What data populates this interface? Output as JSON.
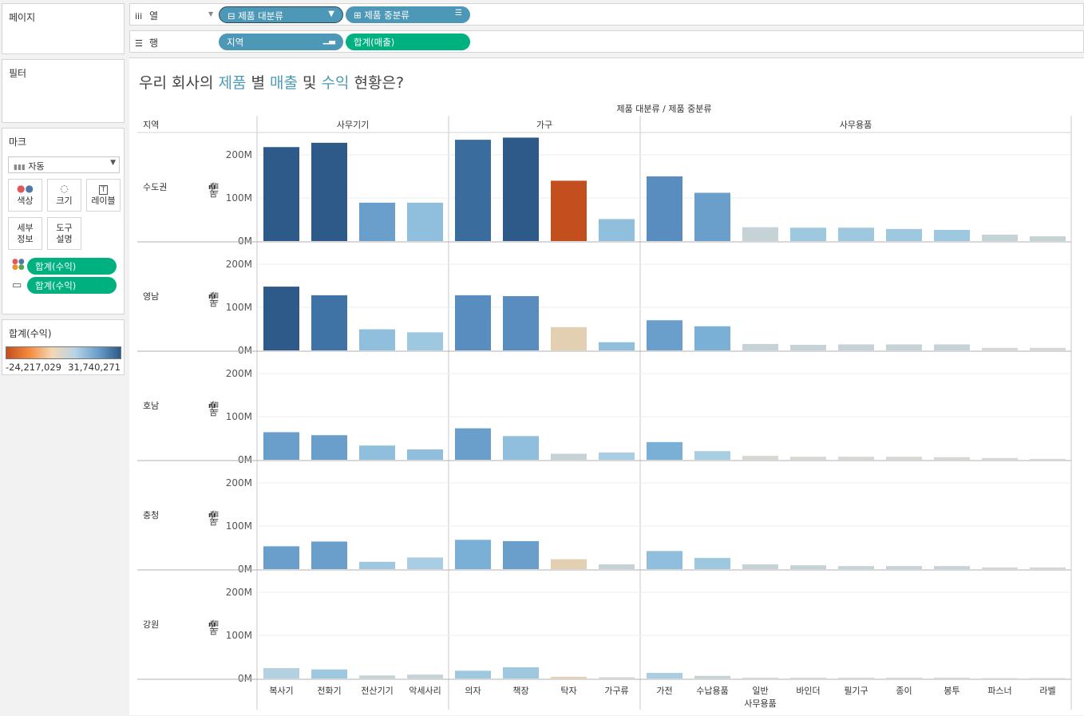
{
  "left_panels": {
    "pages_title": "페이지",
    "filters_title": "필터",
    "marks_title": "마크",
    "mark_type": "자동",
    "mark_buttons": {
      "color": "색상",
      "size": "크기",
      "label": "레이블",
      "detail": "세부\n정보",
      "tooltip": "도구\n설명"
    },
    "mark_pills": [
      "합계(수익)",
      "합계(수익)"
    ],
    "legend_title": "합계(수익)",
    "legend_min": "-24,217,029",
    "legend_max": "31,740,271",
    "legend_colors": [
      "#c34f1e",
      "#f58a3d",
      "#f5d7b4",
      "#b7d4e6",
      "#6a9fcc",
      "#2d5a88"
    ]
  },
  "shelves": {
    "columns_label": "열",
    "rows_label": "행",
    "column_pills": [
      "제품 대분류",
      "제품 중분류"
    ],
    "row_pills": [
      "지역",
      "합계(매출)"
    ]
  },
  "title": {
    "p1": "우리 회사의 ",
    "w1": "제품",
    "p2": " 별 ",
    "w2": "매출",
    "p3": " 및 ",
    "w3": "수익",
    "p4": " 현황은?"
  },
  "chart_data": {
    "type": "bar",
    "top_header": "제품 대분류 / 제품 중분류",
    "row_header": "지역",
    "category_groups": [
      {
        "name": "사무기기",
        "items": [
          "복사기",
          "전화기",
          "전산기기",
          "악세사리"
        ]
      },
      {
        "name": "가구",
        "items": [
          "의자",
          "책장",
          "탁자",
          "가구류"
        ]
      },
      {
        "name": "사무용품",
        "items": [
          "가전",
          "수납용품",
          "일반\n사무용품",
          "바인더",
          "필기구",
          "종이",
          "봉투",
          "파스너",
          "라벨"
        ]
      }
    ],
    "ylabel": "매출",
    "ylim": [
      0,
      250000000
    ],
    "yticks": [
      0,
      100000000,
      200000000
    ],
    "ytick_labels": [
      "0M",
      "100M",
      "200M"
    ],
    "series": [
      {
        "name": "수도권",
        "values": [
          218,
          228,
          89,
          89,
          235,
          240,
          140,
          51,
          150,
          112,
          32,
          31,
          31,
          28,
          26,
          15,
          11
        ],
        "colors": [
          "#2d5a88",
          "#2d5a88",
          "#6a9fcc",
          "#8fbfdc",
          "#3b6c9e",
          "#2d5a88",
          "#c34f1e",
          "#8fbfdc",
          "#5a8dbf",
          "#6a9fcc",
          "#c5d3d6",
          "#9ec8e0",
          "#9ec8e0",
          "#9ec8e0",
          "#9ec8e0",
          "#c5d3d6",
          "#c5d3d6"
        ]
      },
      {
        "name": "영남",
        "values": [
          148,
          128,
          49,
          42,
          128,
          126,
          54,
          19,
          70,
          56,
          15,
          13,
          14,
          14,
          14,
          6,
          6
        ],
        "colors": [
          "#2d5a88",
          "#3f72a5",
          "#8fbfdc",
          "#9ec8e0",
          "#5a8dbf",
          "#5a8dbf",
          "#e3d0b3",
          "#8fbfdc",
          "#6a9fcc",
          "#7bb0d6",
          "#c5d3d6",
          "#c5d3d6",
          "#c5d3d6",
          "#c5d3d6",
          "#c5d3d6",
          "#d7d7d3",
          "#d7d7d3"
        ]
      },
      {
        "name": "호남",
        "values": [
          64,
          57,
          33,
          24,
          73,
          55,
          14,
          17,
          41,
          20,
          9,
          7,
          7,
          7,
          6,
          4,
          2
        ],
        "colors": [
          "#6a9fcc",
          "#6a9fcc",
          "#8fbfdc",
          "#8fbfdc",
          "#6a9fcc",
          "#8fbfdc",
          "#c5d3d6",
          "#a9cde3",
          "#7bb0d6",
          "#a9cde3",
          "#d7d7d3",
          "#d7d7d3",
          "#d7d7d3",
          "#d7d7d3",
          "#d7d7d3",
          "#d7d7d3",
          "#d7d7d3"
        ]
      },
      {
        "name": "충청",
        "values": [
          53,
          64,
          17,
          27,
          68,
          65,
          23,
          11,
          42,
          26,
          11,
          9,
          7,
          7,
          7,
          4,
          4
        ],
        "colors": [
          "#6a9fcc",
          "#6a9fcc",
          "#9ec8e0",
          "#a9cde3",
          "#7bb0d6",
          "#6a9fcc",
          "#e3d0b3",
          "#c5d3d6",
          "#8fbfdc",
          "#9ec8e0",
          "#c5d3d6",
          "#c5d3d6",
          "#c5d3d6",
          "#c5d3d6",
          "#c5d3d6",
          "#d7d7d3",
          "#d7d7d3"
        ]
      },
      {
        "name": "강원",
        "values": [
          24,
          21,
          7,
          9,
          18,
          26,
          4,
          3,
          13,
          6,
          2,
          2,
          2,
          2,
          2,
          1,
          1
        ],
        "colors": [
          "#b3d1e1",
          "#9ec8e0",
          "#c5d3d6",
          "#c5d3d6",
          "#9ec8e0",
          "#9ec8e0",
          "#e3d0b3",
          "#d7d7d3",
          "#a9cde3",
          "#c5d3d6",
          "#d7d7d3",
          "#d7d7d3",
          "#d7d7d3",
          "#d7d7d3",
          "#d7d7d3",
          "#d7d7d3",
          "#d7d7d3"
        ]
      }
    ],
    "value_unit": "M"
  }
}
